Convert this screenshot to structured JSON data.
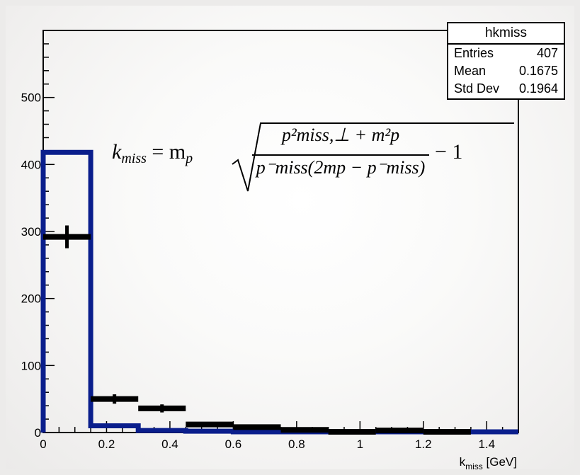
{
  "chart_data": {
    "type": "bar",
    "title": "",
    "xlabel": "k_miss [GeV]",
    "xlabel_main": "k",
    "xlabel_sub": "miss",
    "xlabel_unit": " [GeV]",
    "ylabel": "",
    "xlim": [
      0,
      1.5
    ],
    "ylim": [
      0,
      600
    ],
    "x_ticks": [
      "0",
      "0.2",
      "0.4",
      "0.6",
      "0.8",
      "1",
      "1.2",
      "1.4"
    ],
    "x_tick_values": [
      0,
      0.2,
      0.4,
      0.6,
      0.8,
      1.0,
      1.2,
      1.4
    ],
    "y_ticks": [
      "0",
      "100",
      "200",
      "300",
      "400",
      "500"
    ],
    "y_tick_values": [
      0,
      100,
      200,
      300,
      400,
      500
    ],
    "series": [
      {
        "kind": "histogram-line",
        "color": "#0a1e8c",
        "bins": [
          {
            "lo": 0,
            "hi": 0.15,
            "value": 418
          },
          {
            "lo": 0.15,
            "hi": 0.3,
            "value": 10
          },
          {
            "lo": 0.3,
            "hi": 0.45,
            "value": 3
          },
          {
            "lo": 0.45,
            "hi": 0.6,
            "value": 2
          },
          {
            "lo": 0.6,
            "hi": 0.75,
            "value": 1
          },
          {
            "lo": 0.75,
            "hi": 0.9,
            "value": 1
          },
          {
            "lo": 0.9,
            "hi": 1.05,
            "value": 1
          },
          {
            "lo": 1.05,
            "hi": 1.2,
            "value": 1
          },
          {
            "lo": 1.2,
            "hi": 1.35,
            "value": 1
          },
          {
            "lo": 1.35,
            "hi": 1.5,
            "value": 1
          }
        ]
      },
      {
        "kind": "data-points",
        "color": "#000000",
        "points": [
          {
            "lo": 0,
            "hi": 0.15,
            "value": 292,
            "err": 17
          },
          {
            "lo": 0.15,
            "hi": 0.3,
            "value": 50,
            "err": 7
          },
          {
            "lo": 0.3,
            "hi": 0.45,
            "value": 36,
            "err": 6
          },
          {
            "lo": 0.45,
            "hi": 0.6,
            "value": 12,
            "err": 3.5
          },
          {
            "lo": 0.6,
            "hi": 0.75,
            "value": 8,
            "err": 3
          },
          {
            "lo": 0.75,
            "hi": 0.9,
            "value": 4,
            "err": 2
          },
          {
            "lo": 0.9,
            "hi": 1.05,
            "value": 1,
            "err": 1
          },
          {
            "lo": 1.05,
            "hi": 1.2,
            "value": 3,
            "err": 1.7
          },
          {
            "lo": 1.2,
            "hi": 1.35,
            "value": 1,
            "err": 1
          }
        ]
      }
    ],
    "stats_box": {
      "title": "hkmiss",
      "rows": [
        {
          "label": "Entries",
          "value": "407"
        },
        {
          "label": "Mean",
          "value": "0.1675"
        },
        {
          "label": "Std Dev",
          "value": "0.1964"
        }
      ]
    },
    "annotation": {
      "lhs_main": "k",
      "lhs_sub": "miss",
      "lhs_rest": " = m",
      "lhs_sub2": "p",
      "numerator": "p²miss,⊥ + m²p",
      "denominator": "p⁻miss(2mp − p⁻miss)",
      "tail": "− 1"
    }
  }
}
